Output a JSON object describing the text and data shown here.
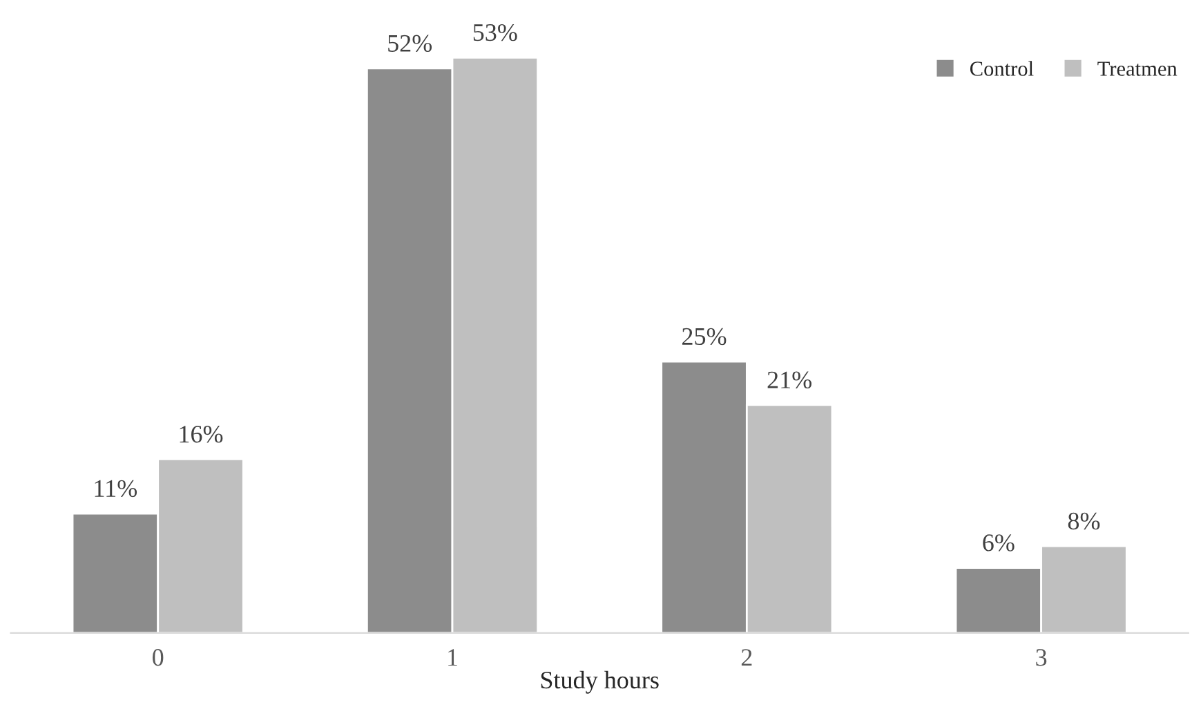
{
  "chart_data": {
    "type": "bar",
    "xlabel": "Study hours",
    "categories": [
      "0",
      "1",
      "2",
      "3"
    ],
    "series": [
      {
        "name": "Control",
        "color": "#8c8c8c",
        "values": [
          11,
          52,
          25,
          6
        ],
        "value_labels": [
          "11%",
          "52%",
          "25%",
          "6%"
        ]
      },
      {
        "name": "Treatmen",
        "color": "#bfbfbf",
        "values": [
          16,
          53,
          21,
          8
        ],
        "value_labels": [
          "16%",
          "53%",
          "21%",
          "8%"
        ]
      }
    ],
    "legend": "top right",
    "grid": false
  }
}
